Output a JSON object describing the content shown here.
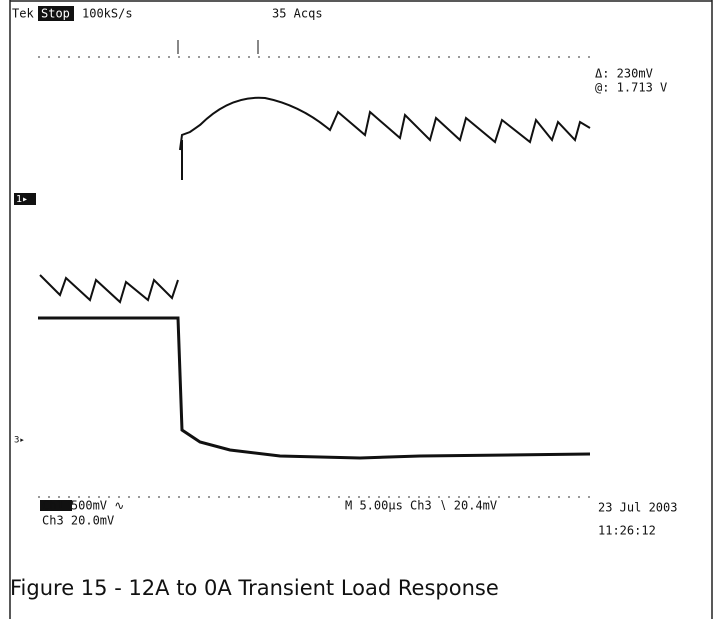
{
  "scope": {
    "header": {
      "brand": "Tek",
      "state": "Stop",
      "rate": "100kS/s",
      "acqs": "35 Acqs"
    },
    "cursor": {
      "delta": "Δ: 230mV",
      "at": "@: 1.713 V"
    },
    "markers": {
      "ch1": "1▸",
      "ch3": "3▸"
    },
    "footer": {
      "ch1": "Ch1  500mV ∿",
      "timebase": "M 5.00µs Ch3 ∖ 20.4mV",
      "ch3": "Ch3  20.0mV",
      "date": "23 Jul 2003",
      "time": "11:26:12"
    }
  },
  "caption": "Figure 15 - 12A to 0A Transient Load Response"
}
